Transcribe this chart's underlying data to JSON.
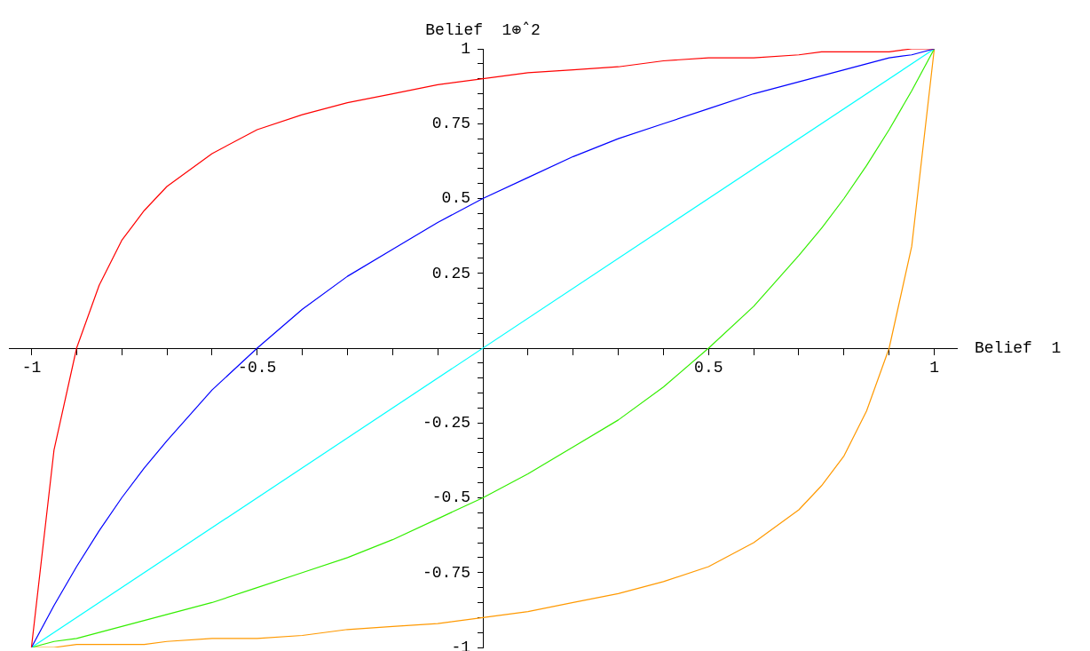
{
  "chart_data": {
    "type": "line",
    "xlabel": "Belief  1",
    "ylabel": "Belief  1⊕̂ 2",
    "x": [
      -1,
      -0.95,
      -0.9,
      -0.85,
      -0.8,
      -0.75,
      -0.7,
      -0.6,
      -0.5,
      -0.4,
      -0.3,
      -0.2,
      -0.1,
      0,
      0.1,
      0.2,
      0.3,
      0.4,
      0.5,
      0.6,
      0.7,
      0.75,
      0.8,
      0.85,
      0.9,
      0.95,
      1
    ],
    "series": [
      {
        "color": "#ff0000",
        "values": [
          -1,
          -0.34,
          0,
          0.21,
          0.36,
          0.46,
          0.54,
          0.65,
          0.73,
          0.78,
          0.82,
          0.85,
          0.88,
          0.9,
          0.92,
          0.93,
          0.94,
          0.96,
          0.97,
          0.97,
          0.98,
          0.99,
          0.99,
          0.99,
          0.99,
          1,
          1
        ]
      },
      {
        "color": "#0000ff",
        "values": [
          -1,
          -0.86,
          -0.73,
          -0.61,
          -0.5,
          -0.4,
          -0.31,
          -0.14,
          0,
          0.13,
          0.24,
          0.33,
          0.42,
          0.5,
          0.57,
          0.64,
          0.7,
          0.75,
          0.8,
          0.85,
          0.89,
          0.91,
          0.93,
          0.95,
          0.97,
          0.98,
          1
        ]
      },
      {
        "color": "#00ffff",
        "x": [
          -1,
          1
        ],
        "values": [
          -1,
          1
        ]
      },
      {
        "color": "#33ee00",
        "values": [
          -1,
          -0.98,
          -0.97,
          -0.95,
          -0.93,
          -0.91,
          -0.89,
          -0.85,
          -0.8,
          -0.75,
          -0.7,
          -0.64,
          -0.57,
          -0.5,
          -0.42,
          -0.33,
          -0.24,
          -0.13,
          0,
          0.14,
          0.31,
          0.4,
          0.5,
          0.61,
          0.73,
          0.86,
          1
        ]
      },
      {
        "color": "#ff9900",
        "values": [
          -1,
          -1,
          -0.99,
          -0.99,
          -0.99,
          -0.99,
          -0.98,
          -0.97,
          -0.97,
          -0.96,
          -0.94,
          -0.93,
          -0.92,
          -0.9,
          -0.88,
          -0.85,
          -0.82,
          -0.78,
          -0.73,
          -0.65,
          -0.54,
          -0.46,
          -0.36,
          -0.21,
          0,
          0.34,
          1
        ]
      }
    ],
    "xlim": [
      -1.05,
      1.05
    ],
    "ylim": [
      -1,
      1
    ],
    "xticks": [
      -1,
      {
        "value": -0.9,
        "label": null
      },
      {
        "value": -0.8,
        "label": null
      },
      {
        "value": -0.7,
        "label": null
      },
      {
        "value": -0.6,
        "label": null
      },
      -0.5,
      {
        "value": -0.4,
        "label": null
      },
      {
        "value": -0.3,
        "label": null
      },
      {
        "value": -0.2,
        "label": null
      },
      {
        "value": -0.1,
        "label": null
      },
      {
        "value": 0.1,
        "label": null
      },
      {
        "value": 0.2,
        "label": null
      },
      {
        "value": 0.3,
        "label": null
      },
      {
        "value": 0.4,
        "label": null
      },
      0.5,
      {
        "value": 0.6,
        "label": null
      },
      {
        "value": 0.7,
        "label": null
      },
      {
        "value": 0.8,
        "label": null
      },
      {
        "value": 0.9,
        "label": null
      },
      1
    ],
    "yticks": [
      -1,
      {
        "value": -0.95,
        "label": null
      },
      {
        "value": -0.9,
        "label": null
      },
      {
        "value": -0.85,
        "label": null
      },
      {
        "value": -0.8,
        "label": null
      },
      -0.75,
      {
        "value": -0.7,
        "label": null
      },
      {
        "value": -0.65,
        "label": null
      },
      {
        "value": -0.6,
        "label": null
      },
      {
        "value": -0.55,
        "label": null
      },
      -0.5,
      {
        "value": -0.45,
        "label": null
      },
      {
        "value": -0.4,
        "label": null
      },
      {
        "value": -0.35,
        "label": null
      },
      {
        "value": -0.3,
        "label": null
      },
      -0.25,
      {
        "value": -0.2,
        "label": null
      },
      {
        "value": -0.15,
        "label": null
      },
      {
        "value": -0.1,
        "label": null
      },
      {
        "value": -0.05,
        "label": null
      },
      {
        "value": 0.05,
        "label": null
      },
      {
        "value": 0.1,
        "label": null
      },
      {
        "value": 0.15,
        "label": null
      },
      {
        "value": 0.2,
        "label": null
      },
      0.25,
      {
        "value": 0.3,
        "label": null
      },
      {
        "value": 0.35,
        "label": null
      },
      {
        "value": 0.4,
        "label": null
      },
      {
        "value": 0.45,
        "label": null
      },
      0.5,
      {
        "value": 0.55,
        "label": null
      },
      {
        "value": 0.6,
        "label": null
      },
      {
        "value": 0.65,
        "label": null
      },
      {
        "value": 0.7,
        "label": null
      },
      0.75,
      {
        "value": 0.8,
        "label": null
      },
      {
        "value": 0.85,
        "label": null
      },
      {
        "value": 0.9,
        "label": null
      },
      {
        "value": 0.95,
        "label": null
      },
      1
    ],
    "grid": false,
    "legend": false,
    "marker": "none",
    "line_style": "solid"
  }
}
